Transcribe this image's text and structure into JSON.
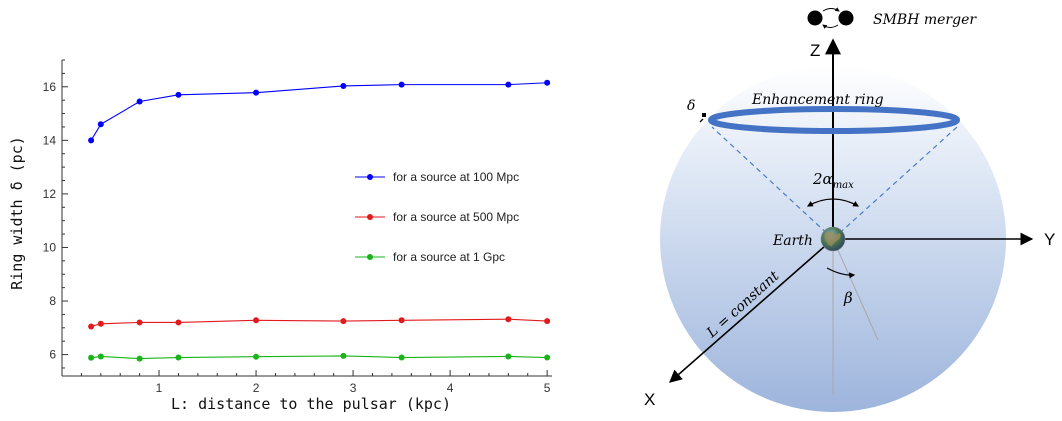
{
  "chart_data": {
    "type": "line",
    "title": "",
    "xlabel": "L: distance to the pulsar (kpc)",
    "ylabel": "Ring width δ (pc)",
    "xlim": [
      0,
      5.05
    ],
    "ylim": [
      5.2,
      17.0
    ],
    "xticks": [
      1,
      2,
      3,
      4,
      5
    ],
    "yticks": [
      6,
      8,
      10,
      12,
      14,
      16
    ],
    "legend_position": "center-right",
    "grid": false,
    "series": [
      {
        "name": "for a source at 100 Mpc",
        "color": "#0000ff",
        "x": [
          0.3,
          0.4,
          0.8,
          1.2,
          2.0,
          2.9,
          3.5,
          4.6,
          5.0
        ],
        "y": [
          14.0,
          14.6,
          15.45,
          15.7,
          15.78,
          16.03,
          16.08,
          16.08,
          16.15
        ]
      },
      {
        "name": "for a source at 500 Mpc",
        "color": "#e31a1c",
        "x": [
          0.3,
          0.4,
          0.8,
          1.2,
          2.0,
          2.9,
          3.5,
          4.6,
          5.0
        ],
        "y": [
          7.05,
          7.15,
          7.2,
          7.2,
          7.28,
          7.25,
          7.28,
          7.32,
          7.25
        ]
      },
      {
        "name": "for a source at 1 Gpc",
        "color": "#17b517",
        "x": [
          0.3,
          0.4,
          0.8,
          1.2,
          2.0,
          2.9,
          3.5,
          4.6,
          5.0
        ],
        "y": [
          5.88,
          5.93,
          5.85,
          5.89,
          5.92,
          5.95,
          5.89,
          5.93,
          5.89
        ]
      }
    ]
  },
  "diagram": {
    "merger_label": "SMBH merger",
    "ring_label": "Enhancement ring",
    "delta_label": "δ",
    "alpha_label": "2α",
    "alpha_sub": "max",
    "earth_label": "Earth",
    "beta_label": "β",
    "l_label": "L = constant",
    "axis_x": "X",
    "axis_y": "Y",
    "axis_z": "Z",
    "colors": {
      "ring": "#4472c4",
      "sphere_top": "#ffffff",
      "sphere_bottom": "#9db4dc"
    }
  }
}
